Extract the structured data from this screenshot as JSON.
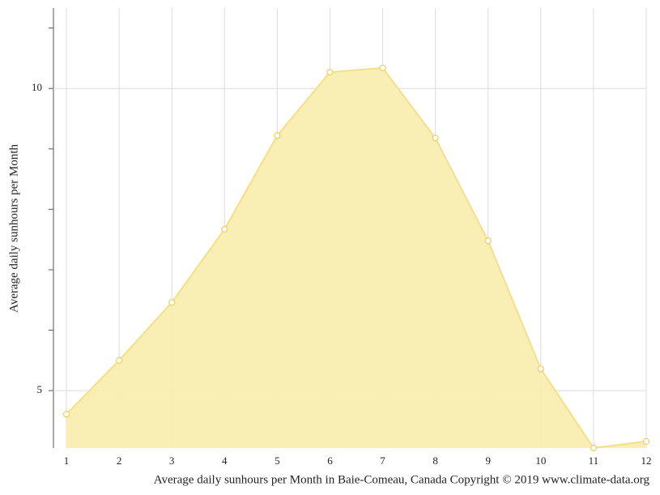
{
  "chart_data": {
    "type": "area",
    "title": "Average daily sunhours per Month in Baie-Comeau, Canada Copyright © 2019 www.climate-data.org",
    "y_label": "Average daily sunhours per Month",
    "x": [
      1,
      2,
      3,
      4,
      5,
      6,
      7,
      8,
      9,
      10,
      11,
      12
    ],
    "values": [
      4.61,
      5.5,
      6.46,
      7.67,
      9.22,
      10.27,
      10.34,
      9.18,
      7.48,
      5.36,
      4.05,
      4.16
    ],
    "xlim": [
      1,
      12
    ],
    "xticks": [
      1,
      2,
      3,
      4,
      5,
      6,
      7,
      8,
      9,
      10,
      11,
      12
    ],
    "ylim": [
      4.05,
      11.33
    ],
    "yticks": [
      5,
      10
    ],
    "yticks_minor": [
      6,
      7,
      8,
      9,
      11
    ],
    "grid": true,
    "fill_color": "#f9edb0",
    "color": "#f5df88",
    "marker_color": "#ecd060"
  }
}
